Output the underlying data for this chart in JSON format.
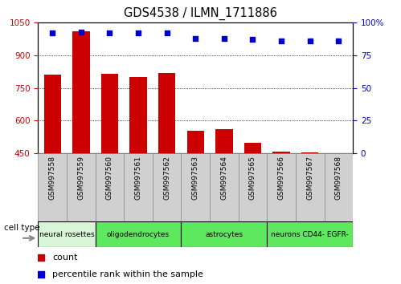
{
  "title": "GDS4538 / ILMN_1711886",
  "samples": [
    "GSM997558",
    "GSM997559",
    "GSM997560",
    "GSM997561",
    "GSM997562",
    "GSM997563",
    "GSM997564",
    "GSM997565",
    "GSM997566",
    "GSM997567",
    "GSM997568"
  ],
  "counts": [
    810,
    1010,
    815,
    800,
    820,
    555,
    560,
    500,
    458,
    455,
    450
  ],
  "percentile_ranks": [
    92,
    93,
    92,
    92,
    92,
    88,
    88,
    87,
    86,
    86,
    86
  ],
  "ylim_left": [
    450,
    1050
  ],
  "ylim_right": [
    0,
    100
  ],
  "yticks_left": [
    450,
    600,
    750,
    900,
    1050
  ],
  "yticks_right": [
    0,
    25,
    50,
    75,
    100
  ],
  "bar_color": "#cc0000",
  "scatter_color": "#0000cc",
  "groups": [
    {
      "label": "neural rosettes",
      "indices": [
        0,
        1
      ],
      "color": "#d8f5d8"
    },
    {
      "label": "oligodendrocytes",
      "indices": [
        2,
        3,
        4
      ],
      "color": "#5de85d"
    },
    {
      "label": "astrocytes",
      "indices": [
        5,
        6,
        7
      ],
      "color": "#5de85d"
    },
    {
      "label": "neurons CD44- EGFR-",
      "indices": [
        8,
        9,
        10
      ],
      "color": "#5de85d"
    }
  ],
  "legend_count_label": "count",
  "legend_percentile_label": "percentile rank within the sample",
  "cell_type_label": "cell type",
  "grid_color": "#000000",
  "tick_label_color_left": "#cc0000",
  "tick_label_color_right": "#0000cc",
  "xtick_bg_color": "#d0d0d0",
  "xtick_border_color": "#888888"
}
